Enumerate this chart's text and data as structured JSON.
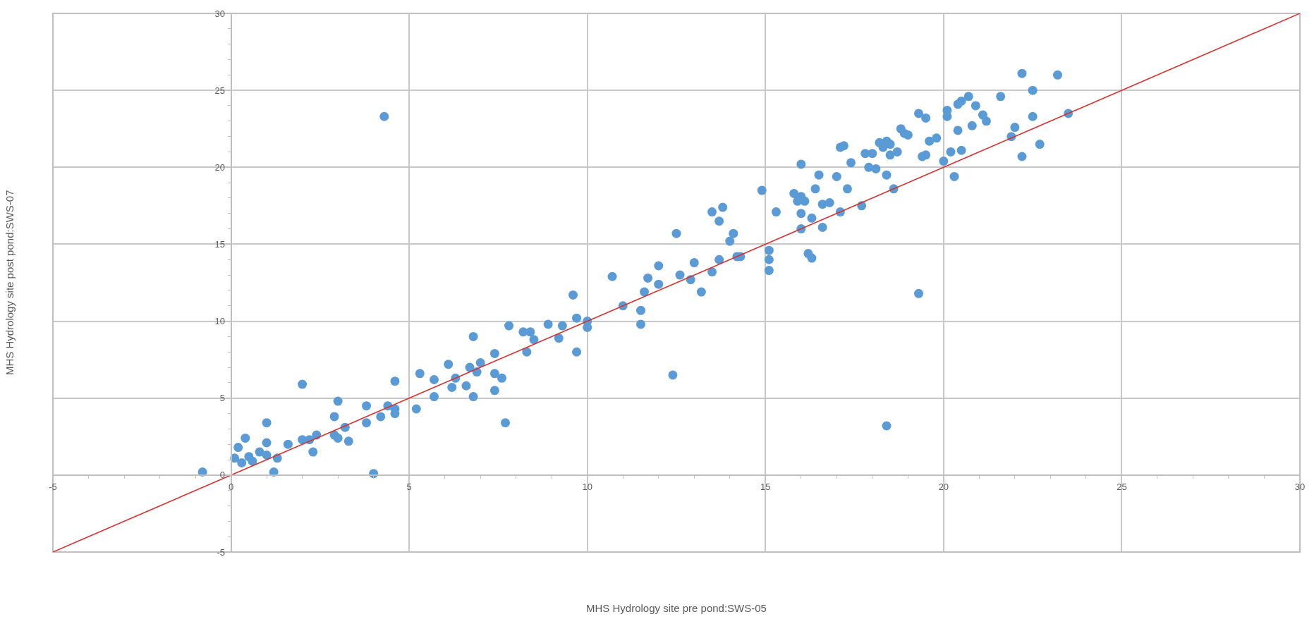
{
  "chart_data": {
    "type": "scatter",
    "xlabel": "MHS Hydrology site pre pond:SWS-05",
    "ylabel": "MHS Hydrology site post pond:SWS-07",
    "xlim": [
      -5,
      30
    ],
    "ylim": [
      -5,
      30
    ],
    "xticks": [
      -5,
      0,
      5,
      10,
      15,
      20,
      25,
      30
    ],
    "yticks": [
      -5,
      0,
      5,
      10,
      15,
      20,
      25,
      30
    ],
    "grid": true,
    "series": [
      {
        "marker": "circle",
        "color": "#5b9bd5",
        "x": [
          -0.8,
          0.1,
          0.2,
          0.3,
          0.4,
          0.5,
          0.6,
          0.8,
          1.0,
          1.0,
          1.0,
          1.2,
          1.3,
          1.6,
          2.0,
          2.0,
          2.2,
          2.3,
          2.4,
          2.9,
          2.9,
          3.0,
          3.0,
          3.2,
          3.3,
          3.8,
          3.8,
          4.0,
          4.2,
          4.3,
          4.4,
          4.6,
          4.6,
          4.6,
          5.2,
          5.3,
          5.7,
          5.7,
          6.1,
          6.2,
          6.3,
          6.6,
          6.7,
          6.8,
          6.8,
          6.9,
          7.0,
          7.4,
          7.4,
          7.4,
          7.6,
          7.7,
          7.8,
          8.2,
          8.3,
          8.4,
          8.5,
          8.9,
          9.2,
          9.3,
          9.6,
          9.7,
          9.7,
          10.0,
          10.0,
          10.7,
          11.0,
          11.5,
          11.5,
          11.6,
          11.7,
          12.0,
          12.0,
          12.4,
          12.5,
          12.6,
          12.9,
          13.0,
          13.2,
          13.5,
          13.5,
          13.7,
          13.7,
          13.8,
          14.0,
          14.1,
          14.2,
          14.3,
          14.9,
          15.1,
          15.1,
          15.1,
          15.3,
          15.8,
          15.9,
          16.0,
          16.0,
          16.0,
          16.0,
          16.1,
          16.2,
          16.3,
          16.3,
          16.4,
          16.5,
          16.6,
          16.6,
          16.8,
          17.0,
          17.1,
          17.1,
          17.2,
          17.3,
          17.4,
          17.7,
          17.8,
          17.9,
          18.0,
          18.1,
          18.2,
          18.3,
          18.4,
          18.4,
          18.4,
          18.5,
          18.5,
          18.6,
          18.7,
          18.8,
          18.9,
          19.0,
          19.3,
          19.3,
          19.4,
          19.5,
          19.5,
          19.6,
          19.8,
          20.0,
          20.1,
          20.1,
          20.2,
          20.3,
          20.4,
          20.4,
          20.5,
          20.5,
          20.7,
          20.8,
          20.9,
          21.1,
          21.2,
          21.6,
          21.9,
          22.0,
          22.2,
          22.2,
          22.5,
          22.5,
          22.7,
          23.2,
          23.5
        ],
        "values": [
          0.2,
          1.1,
          1.8,
          0.8,
          2.4,
          1.2,
          0.9,
          1.5,
          1.3,
          3.4,
          2.1,
          0.2,
          1.1,
          2.0,
          2.3,
          5.9,
          2.3,
          1.5,
          2.6,
          2.6,
          3.8,
          4.8,
          2.4,
          3.1,
          2.2,
          3.4,
          4.5,
          0.1,
          3.8,
          23.3,
          4.5,
          4.0,
          4.3,
          6.1,
          4.3,
          6.6,
          5.1,
          6.2,
          7.2,
          5.7,
          6.3,
          5.8,
          7.0,
          5.1,
          9.0,
          6.7,
          7.3,
          5.5,
          7.9,
          6.6,
          6.3,
          3.4,
          9.7,
          9.3,
          8.0,
          9.3,
          8.8,
          9.8,
          8.9,
          9.7,
          11.7,
          10.2,
          8.0,
          9.6,
          10.0,
          12.9,
          11.0,
          10.7,
          9.8,
          11.9,
          12.8,
          12.4,
          13.6,
          6.5,
          15.7,
          13.0,
          12.7,
          13.8,
          11.9,
          13.2,
          17.1,
          16.5,
          14.0,
          17.4,
          15.2,
          15.7,
          14.2,
          14.2,
          18.5,
          14.6,
          13.3,
          14.0,
          17.1,
          18.3,
          17.8,
          18.1,
          20.2,
          17.0,
          16.0,
          17.8,
          14.4,
          14.1,
          16.7,
          18.6,
          19.5,
          16.1,
          17.6,
          17.7,
          19.4,
          21.3,
          17.1,
          21.4,
          18.6,
          20.3,
          17.5,
          20.9,
          20.0,
          20.9,
          19.9,
          21.6,
          21.3,
          19.5,
          3.2,
          21.7,
          21.5,
          20.8,
          18.6,
          21.0,
          22.5,
          22.2,
          22.1,
          23.5,
          11.8,
          20.7,
          20.8,
          23.2,
          21.7,
          21.9,
          20.4,
          23.7,
          23.3,
          21.0,
          19.4,
          24.1,
          22.4,
          21.1,
          24.3,
          24.6,
          22.7,
          24.0,
          23.4,
          23.0,
          24.6,
          22.0,
          22.6,
          20.7,
          26.1,
          25.0,
          23.3,
          21.5,
          26.0,
          23.5
        ]
      },
      {
        "type": "line",
        "color": "#d9302c",
        "line_style": "solid",
        "x": [
          -5,
          30
        ],
        "values": [
          -5,
          30
        ]
      }
    ]
  }
}
